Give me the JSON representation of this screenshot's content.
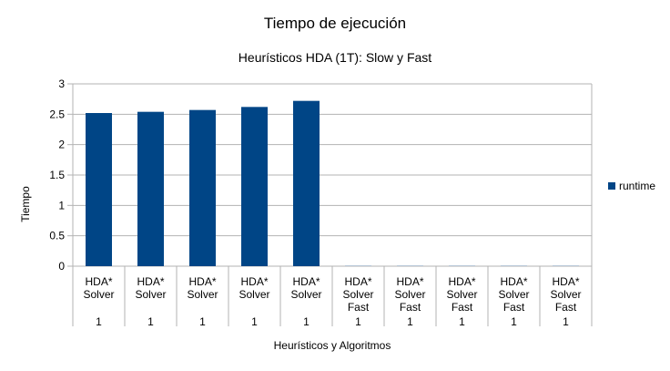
{
  "chart_data": {
    "type": "bar",
    "title": "Tiempo de ejecución",
    "subtitle": "Heurísticos HDA (1T): Slow y Fast",
    "xlabel": "Heurísticos y Algoritmos",
    "ylabel": "Tiempo",
    "ylim": [
      0,
      3
    ],
    "yticks": [
      "0",
      "0.5",
      "1",
      "1.5",
      "2",
      "2.5",
      "3"
    ],
    "grid": true,
    "legend_position": "right",
    "categories": [
      {
        "lines": [
          "HDA*",
          "Solver"
        ],
        "value_label": "1"
      },
      {
        "lines": [
          "HDA*",
          "Solver"
        ],
        "value_label": "1"
      },
      {
        "lines": [
          "HDA*",
          "Solver"
        ],
        "value_label": "1"
      },
      {
        "lines": [
          "HDA*",
          "Solver"
        ],
        "value_label": "1"
      },
      {
        "lines": [
          "HDA*",
          "Solver"
        ],
        "value_label": "1"
      },
      {
        "lines": [
          "HDA*",
          "Solver",
          "Fast"
        ],
        "value_label": "1"
      },
      {
        "lines": [
          "HDA*",
          "Solver",
          "Fast"
        ],
        "value_label": "1"
      },
      {
        "lines": [
          "HDA*",
          "Solver",
          "Fast"
        ],
        "value_label": "1"
      },
      {
        "lines": [
          "HDA*",
          "Solver",
          "Fast"
        ],
        "value_label": "1"
      },
      {
        "lines": [
          "HDA*",
          "Solver",
          "Fast"
        ],
        "value_label": "1"
      }
    ],
    "series": [
      {
        "name": "runtime",
        "color": "#004586",
        "values": [
          2.52,
          2.54,
          2.57,
          2.62,
          2.72,
          0.005,
          0.005,
          0.005,
          0.005,
          0.005
        ]
      }
    ],
    "colors": {
      "grid": "#b3b3b3",
      "axis": "#b3b3b3",
      "near_zero_bar": "#b8c8d8"
    }
  }
}
